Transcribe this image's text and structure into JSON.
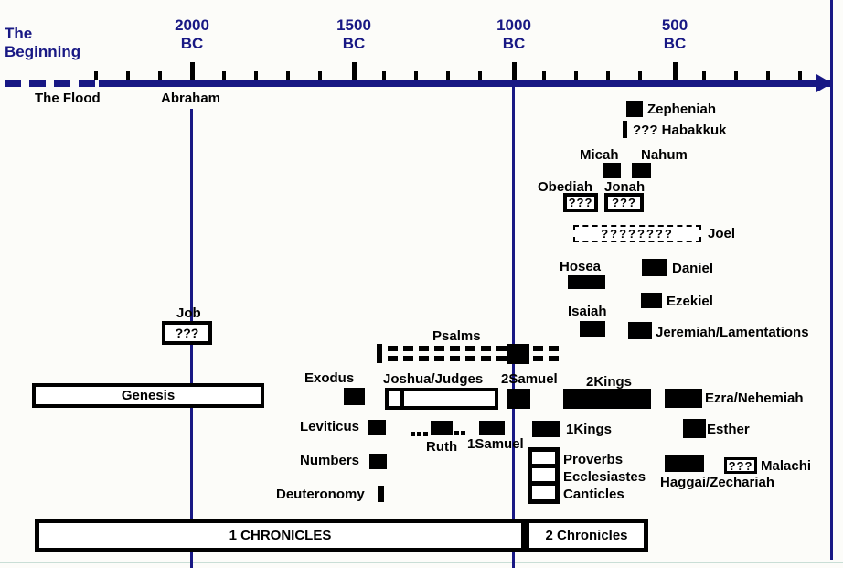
{
  "page": {
    "accent_navy": "#181884",
    "ink_black": "#000000",
    "background": "#fcfcf9"
  },
  "timeline": {
    "beginning_label": "The Beginning",
    "flood_label": "The Flood",
    "abraham_label": "Abraham",
    "markers": [
      {
        "year": "2000",
        "era": "BC"
      },
      {
        "year": "1500",
        "era": "BC"
      },
      {
        "year": "1000",
        "era": "BC"
      },
      {
        "year": "500",
        "era": "BC"
      }
    ]
  },
  "books": {
    "zepheniah": "Zepheniah",
    "habakkuk": "??? Habakkuk",
    "micah": "Micah",
    "nahum": "Nahum",
    "obediah": "Obediah",
    "obediah_box": "???",
    "jonah": "Jonah",
    "jonah_box": "???",
    "joel": "Joel",
    "joel_box": "????????",
    "hosea": "Hosea",
    "daniel": "Daniel",
    "ezekiel": "Ezekiel",
    "isaiah": "Isaiah",
    "jeremiah": "Jeremiah/Lamentations",
    "job": "Job",
    "job_box": "???",
    "psalms": "Psalms",
    "genesis": "Genesis",
    "exodus": "Exodus",
    "joshua_judges": "Joshua/Judges",
    "samuel2": "2Samuel",
    "kings2": "2Kings",
    "ezra": "Ezra/Nehemiah",
    "leviticus": "Leviticus",
    "ruth": "Ruth",
    "samuel1": "1Samuel",
    "kings1": "1Kings",
    "esther": "Esther",
    "numbers": "Numbers",
    "proverbs": "Proverbs",
    "ecclesiastes": "Ecclesiastes",
    "canticles": "Canticles",
    "haggai": "Haggai/Zechariah",
    "malachi": "Malachi",
    "malachi_box": "???",
    "deuteronomy": "Deuteronomy",
    "chronicles1": "1 CHRONICLES",
    "chronicles2": "2 Chronicles"
  }
}
